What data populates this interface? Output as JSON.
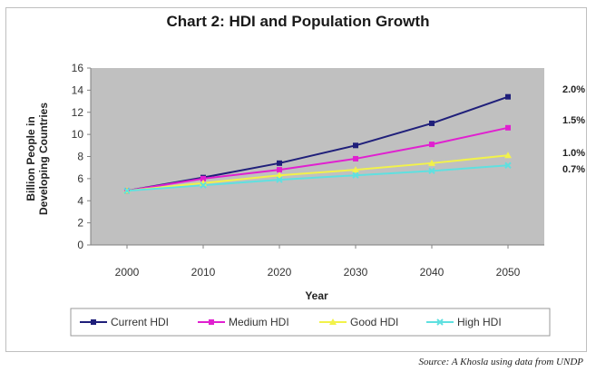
{
  "chart_data": {
    "type": "line",
    "title": "Chart 2: HDI and Population Growth",
    "xlabel": "Year",
    "ylabel_line1": "Billion People in",
    "ylabel_line2": "Developing Countries",
    "x": [
      2000,
      2010,
      2020,
      2030,
      2040,
      2050
    ],
    "ylim": [
      0,
      16
    ],
    "yticks": [
      0,
      2,
      4,
      6,
      8,
      10,
      12,
      14,
      16
    ],
    "grid": false,
    "legend_position": "bottom",
    "series": [
      {
        "name": "Current HDI",
        "values": [
          4.9,
          6.1,
          7.4,
          9.0,
          11.0,
          13.4
        ],
        "color": "#1f1f7a",
        "marker": "square",
        "rate": "2.0%"
      },
      {
        "name": "Medium HDI",
        "values": [
          4.9,
          6.0,
          6.8,
          7.8,
          9.1,
          10.6
        ],
        "color": "#e020d0",
        "marker": "square",
        "rate": "1.5%"
      },
      {
        "name": "Good HDI",
        "values": [
          4.9,
          5.6,
          6.3,
          6.8,
          7.4,
          8.1
        ],
        "color": "#f2f24a",
        "marker": "triangle",
        "rate": "1.0%"
      },
      {
        "name": "High HDI",
        "values": [
          4.9,
          5.4,
          5.9,
          6.3,
          6.7,
          7.2
        ],
        "color": "#5fe0e0",
        "marker": "x",
        "rate": "0.7%"
      }
    ],
    "source": "Source: A Khosla using data from UNDP"
  },
  "colors": {
    "plot_area": "#c0c0c0",
    "axis": "#808080"
  }
}
